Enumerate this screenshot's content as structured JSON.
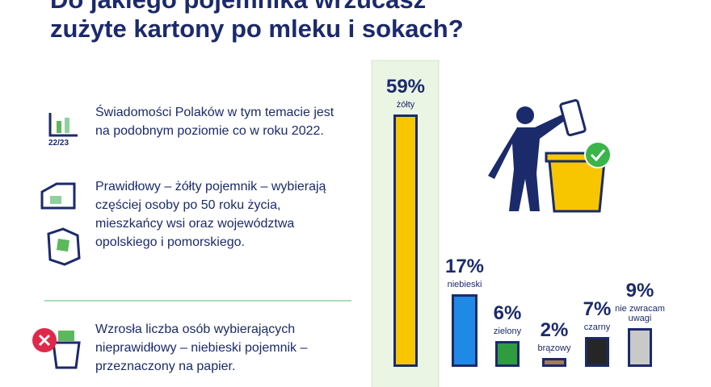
{
  "header": {
    "title_lines": [
      "Do jakiego pojemnika wrzucasz",
      "zużyte kartony po mleku i sokach?"
    ]
  },
  "notes": {
    "icon_label": "22/23",
    "items": [
      "Świadomości Polaków w tym temacie jest na podobnym poziomie co w roku 2022.",
      "Prawidłowy – żółty pojemnik – wybierają częściej osoby po 50 roku życia, mieszkańcy wsi oraz województwa opolskiego i pomorskiego.",
      "Wzrosła liczba osób wybierających nieprawidłowy – niebieski pojemnik – przeznaczony na papier."
    ]
  },
  "chart_data": {
    "type": "bar",
    "categories": [
      "żółty",
      "niebieski",
      "zielony",
      "brązowy",
      "czarny",
      "nie zwracam uwagi"
    ],
    "values": [
      59,
      17,
      6,
      2,
      7,
      9
    ],
    "value_labels": [
      "59%",
      "17%",
      "6%",
      "2%",
      "7%",
      "9%"
    ],
    "colors": [
      "#f7c600",
      "#1f8ae6",
      "#2f9c3f",
      "#a47b5c",
      "#262626",
      "#c9c9c9"
    ],
    "ylim": [
      0,
      60
    ]
  }
}
